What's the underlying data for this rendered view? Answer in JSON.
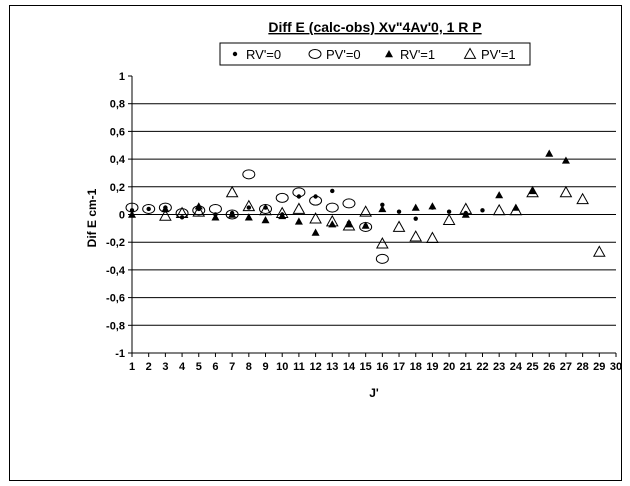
{
  "chart_data": {
    "type": "scatter",
    "title": "Diff E (calc-obs)    Xv\"4Av'0, 1   R P",
    "xlabel": "J'",
    "ylabel": "Dif E cm-1",
    "xlim": [
      1,
      30
    ],
    "ylim": [
      -1,
      1
    ],
    "x_ticks": [
      "1",
      "2",
      "3",
      "4",
      "5",
      "6",
      "7",
      "8",
      "9",
      "10",
      "11",
      "12",
      "13",
      "14",
      "15",
      "16",
      "17",
      "18",
      "19",
      "20",
      "21",
      "22",
      "23",
      "24",
      "25",
      "26",
      "27",
      "28",
      "29",
      "30"
    ],
    "y_ticks": [
      "1",
      "0,8",
      "0,6",
      "0,4",
      "0,2",
      "0",
      "-0,2",
      "-0,4",
      "-0,6",
      "-0,8",
      "-1"
    ],
    "grid": "horizontal",
    "legend_position": "top",
    "series": [
      {
        "name": "RV'=0",
        "marker": "small-dot",
        "points": [
          [
            1,
            0.03
          ],
          [
            2,
            0.04
          ],
          [
            3,
            0.05
          ],
          [
            4,
            -0.02
          ],
          [
            5,
            0.04
          ],
          [
            6,
            0.0
          ],
          [
            7,
            0.01
          ],
          [
            8,
            0.05
          ],
          [
            9,
            0.05
          ],
          [
            10,
            0.0
          ],
          [
            11,
            0.13
          ],
          [
            12,
            0.13
          ],
          [
            13,
            0.17
          ],
          [
            14,
            -0.06
          ],
          [
            15,
            -0.08
          ],
          [
            16,
            0.07
          ],
          [
            17,
            0.02
          ],
          [
            18,
            -0.03
          ],
          [
            19,
            0.05
          ],
          [
            20,
            0.02
          ],
          [
            21,
            0.01
          ],
          [
            22,
            0.03
          ]
        ]
      },
      {
        "name": "PV'=0",
        "marker": "open-circle",
        "points": [
          [
            1,
            0.05
          ],
          [
            2,
            0.04
          ],
          [
            3,
            0.05
          ],
          [
            4,
            0.01
          ],
          [
            5,
            0.03
          ],
          [
            6,
            0.04
          ],
          [
            7,
            0.0
          ],
          [
            8,
            0.29
          ],
          [
            9,
            0.04
          ],
          [
            10,
            0.12
          ],
          [
            11,
            0.16
          ],
          [
            12,
            0.1
          ],
          [
            13,
            0.05
          ],
          [
            14,
            0.08
          ],
          [
            15,
            -0.09
          ],
          [
            16,
            -0.32
          ]
        ]
      },
      {
        "name": "RV'=1",
        "marker": "filled-triangle",
        "points": [
          [
            1,
            0.0
          ],
          [
            3,
            0.04
          ],
          [
            5,
            0.06
          ],
          [
            6,
            -0.02
          ],
          [
            7,
            0.0
          ],
          [
            8,
            -0.02
          ],
          [
            9,
            -0.04
          ],
          [
            10,
            -0.01
          ],
          [
            11,
            -0.05
          ],
          [
            12,
            -0.13
          ],
          [
            13,
            -0.07
          ],
          [
            14,
            -0.07
          ],
          [
            15,
            -0.08
          ],
          [
            16,
            0.04
          ],
          [
            18,
            0.05
          ],
          [
            19,
            0.06
          ],
          [
            21,
            0.0
          ],
          [
            23,
            0.14
          ],
          [
            24,
            0.05
          ],
          [
            25,
            0.17
          ],
          [
            26,
            0.44
          ],
          [
            27,
            0.39
          ]
        ]
      },
      {
        "name": "PV'=1",
        "marker": "open-triangle",
        "points": [
          [
            3,
            -0.01
          ],
          [
            4,
            0.01
          ],
          [
            5,
            0.02
          ],
          [
            7,
            0.16
          ],
          [
            8,
            0.06
          ],
          [
            9,
            0.03
          ],
          [
            10,
            0.01
          ],
          [
            11,
            0.04
          ],
          [
            12,
            -0.03
          ],
          [
            13,
            -0.05
          ],
          [
            14,
            -0.08
          ],
          [
            15,
            0.02
          ],
          [
            16,
            -0.21
          ],
          [
            17,
            -0.09
          ],
          [
            18,
            -0.16
          ],
          [
            19,
            -0.17
          ],
          [
            20,
            -0.04
          ],
          [
            21,
            0.04
          ],
          [
            23,
            0.03
          ],
          [
            24,
            0.03
          ],
          [
            25,
            0.16
          ],
          [
            27,
            0.16
          ],
          [
            28,
            0.11
          ],
          [
            29,
            -0.27
          ]
        ]
      }
    ]
  }
}
